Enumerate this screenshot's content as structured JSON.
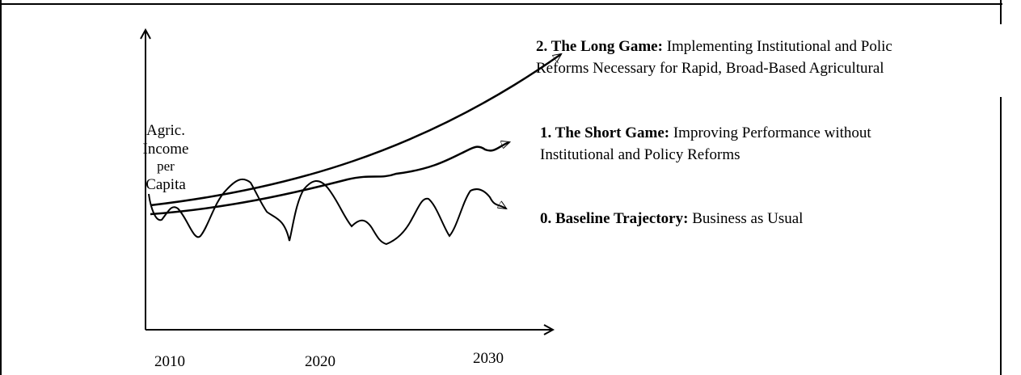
{
  "y_axis_label": [
    "Agric.",
    "Income",
    "per",
    "Capita"
  ],
  "x_labels": [
    "2010",
    "2020",
    "2030"
  ],
  "scenarios": [
    {
      "label": "2. The Long Game:",
      "lines": [
        "Implementing Institutional and Polic",
        "Reforms Necessary for Rapid, Broad-Based Agricultural"
      ]
    },
    {
      "label": "1. The Short Game:",
      "lines": [
        "Improving Performance without",
        "Institutional and Policy Reforms"
      ]
    },
    {
      "label": "0. Baseline Trajectory:",
      "lines": [
        "Business as Usual"
      ]
    }
  ]
}
